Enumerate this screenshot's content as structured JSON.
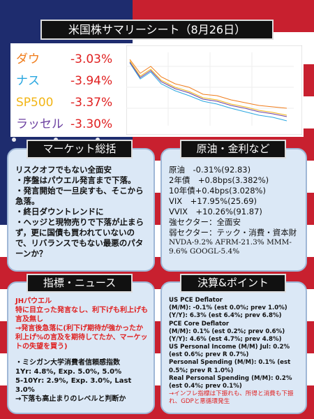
{
  "header": {
    "title": "米国株サマリーシート（8月26日）"
  },
  "indices": [
    {
      "name": "ダウ",
      "change": "-3.03%",
      "color": "#f07c1a"
    },
    {
      "name": "ナス",
      "change": "-3.94%",
      "color": "#2aa7e0"
    },
    {
      "name": "SP500",
      "change": "-3.37%",
      "color": "#f2b515"
    },
    {
      "name": "ラッセル",
      "change": "-3.30%",
      "color": "#6b3fa0"
    }
  ],
  "market_summary": {
    "title": "マーケット総括",
    "lines": [
      "リスクオフでもない全面安",
      "・序盤はパウエル発言まで下落。",
      "・発言開始で一旦戻すも、そこから急落。",
      "・終日ダウントレンドに",
      "・ヘッジと現物売りで下落が止まらず，更に国債も買われていないので、リバランスでもない最悪のパターンか？"
    ]
  },
  "rates": {
    "title": "原油・金利など",
    "lines": [
      "原油　-0.31%(92.83)",
      "2年債　+0.8bps(3.382%)",
      "10年債+0.4bps(3.028%)",
      "VIX　+17.95%(25.69)",
      "VVIX　+10.26%(91.87)",
      "強セクター：全面安",
      "弱セクター：テック・消費・資本財"
    ],
    "stocks": "NVDA-9.2% AFRM-21.3% MMM-9.6% GOOGL-5.4%"
  },
  "news": {
    "title": "指標・ニュース",
    "red_lines": [
      "JHパウエル",
      "特に目立った発言なし、利下げも利上げも言及無し",
      "→発言後急落に(利下げ期待が強かったか利上げ%の言及を期待してたか、マーケットの失望を買う)"
    ],
    "lines": [
      "・ミシガン大学消費者信頼感指数",
      "1Yr: 4.8%, Exp. 5.0%, 5.0%",
      "5-10Yr: 2.9%, Exp. 3.0%, Last 3.0%",
      "→下落も高止まりのレベルと判断か"
    ]
  },
  "earnings": {
    "title": "決算&ポイント",
    "lines": [
      "US PCE Deflator",
      "(M/M): -0.1% (est 0.0%; prev 1.0%)",
      "(Y/Y): 6.3% (est 6.4%; prev 6.8%)",
      "PCE Core Deflator",
      "(M/M): 0.1% (est 0.2%; prev 0.6%)",
      "(Y/Y): 4.6% (est 4.7%; prev 4.8%)",
      "US Personal Income (M/M) Jul: 0.2% (est 0.6%; prev R 0.7%)",
      "Personal Spending (M/M): 0.1% (est 0.5%; prev R 1.0%)",
      "Real Personal Spending (M/M): 0.2% (est 0.4%; prev 0.1%)"
    ],
    "note": "→インフレ指標は下振れも、所得と消費も下振れ、GDPと悪循環発生"
  }
}
